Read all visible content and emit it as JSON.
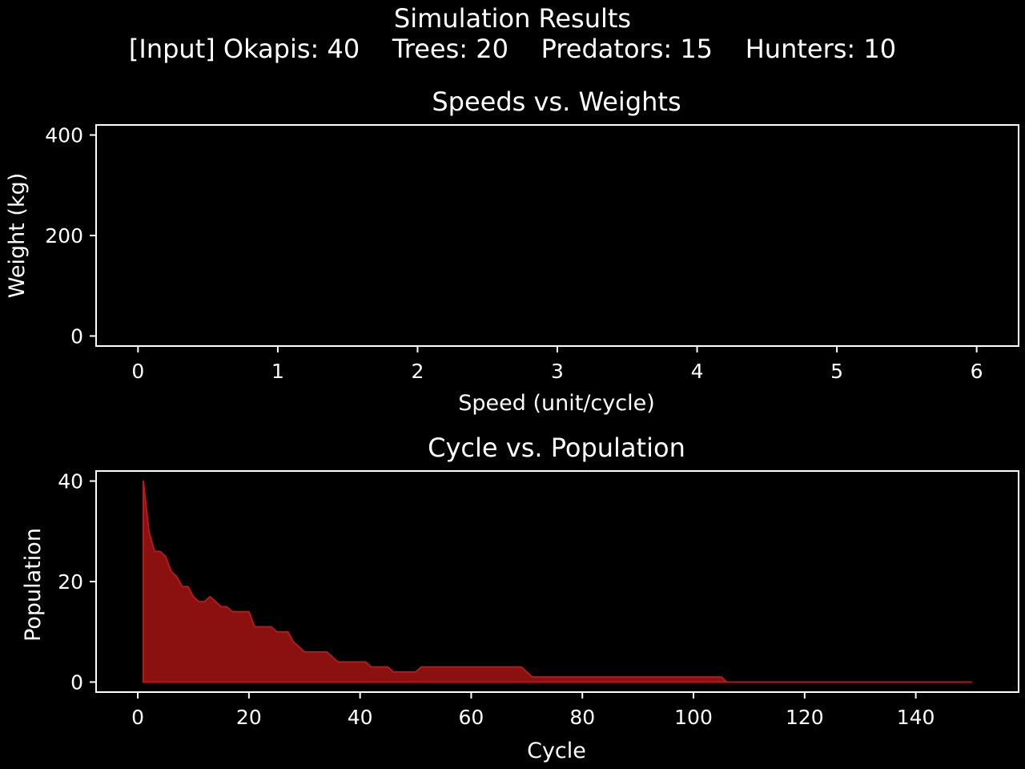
{
  "figure": {
    "title": "Simulation Results",
    "subtitle": "[Input] Okapis: 40    Trees: 20    Predators: 15    Hunters: 10"
  },
  "chart_data": [
    {
      "type": "scatter",
      "title": "Speeds vs. Weights",
      "xlabel": "Speed (unit/cycle)",
      "ylabel": "Weight (kg)",
      "xlim": [
        -0.3,
        6.3
      ],
      "ylim": [
        -20,
        420
      ],
      "xticks": [
        0,
        1,
        2,
        3,
        4,
        5,
        6
      ],
      "xtick_labels": [
        "0",
        "1",
        "2",
        "3",
        "4",
        "5",
        "6"
      ],
      "yticks": [
        0,
        200,
        400
      ],
      "ytick_labels": [
        "0",
        "200",
        "400"
      ],
      "points": [],
      "grid": false,
      "legend": "none"
    },
    {
      "type": "area",
      "title": "Cycle vs. Population",
      "xlabel": "Cycle",
      "ylabel": "Population",
      "xlim": [
        -7.5,
        158.5
      ],
      "ylim": [
        -2,
        42
      ],
      "xticks": [
        0,
        20,
        40,
        60,
        80,
        100,
        120,
        140
      ],
      "xtick_labels": [
        "0",
        "20",
        "40",
        "60",
        "80",
        "100",
        "120",
        "140"
      ],
      "yticks": [
        0,
        20,
        40
      ],
      "ytick_labels": [
        "0",
        "20",
        "40"
      ],
      "color": "#8b1111",
      "edge_color": "#b01c1c",
      "grid": false,
      "legend": "none",
      "series": [
        {
          "x": [
            1,
            2,
            3,
            4,
            5,
            6,
            7,
            8,
            9,
            10,
            11,
            12,
            13,
            14,
            15,
            16,
            17,
            18,
            19,
            20,
            21,
            22,
            23,
            24,
            25,
            26,
            27,
            28,
            29,
            30,
            31,
            32,
            33,
            34,
            35,
            36,
            37,
            38,
            39,
            40,
            41,
            42,
            43,
            44,
            45,
            46,
            47,
            48,
            49,
            50,
            51,
            52,
            53,
            54,
            55,
            56,
            57,
            58,
            59,
            60,
            61,
            62,
            63,
            64,
            65,
            66,
            67,
            68,
            69,
            70,
            71,
            72,
            73,
            74,
            75,
            76,
            77,
            78,
            79,
            80,
            81,
            82,
            83,
            84,
            85,
            86,
            87,
            88,
            89,
            90,
            91,
            92,
            93,
            94,
            95,
            96,
            97,
            98,
            99,
            100,
            101,
            102,
            103,
            104,
            105,
            106,
            107,
            108,
            109,
            110,
            111,
            112,
            113,
            114,
            115,
            116,
            117,
            118,
            119,
            120,
            121,
            122,
            123,
            124,
            125,
            126,
            127,
            128,
            129,
            130,
            131,
            132,
            133,
            134,
            135,
            136,
            137,
            138,
            139,
            140,
            141,
            142,
            143,
            144,
            145,
            146,
            147,
            148,
            149,
            150
          ],
          "y": [
            40,
            30,
            26,
            26,
            25,
            22,
            21,
            19,
            19,
            17,
            16,
            16,
            17,
            16,
            15,
            15,
            14,
            14,
            14,
            14,
            11,
            11,
            11,
            11,
            10,
            10,
            10,
            8,
            7,
            6,
            6,
            6,
            6,
            6,
            5,
            4,
            4,
            4,
            4,
            4,
            4,
            3,
            3,
            3,
            3,
            2,
            2,
            2,
            2,
            2,
            3,
            3,
            3,
            3,
            3,
            3,
            3,
            3,
            3,
            3,
            3,
            3,
            3,
            3,
            3,
            3,
            3,
            3,
            3,
            2,
            1,
            1,
            1,
            1,
            1,
            1,
            1,
            1,
            1,
            1,
            1,
            1,
            1,
            1,
            1,
            1,
            1,
            1,
            1,
            1,
            1,
            1,
            1,
            1,
            1,
            1,
            1,
            1,
            1,
            1,
            1,
            1,
            1,
            1,
            1,
            0,
            0,
            0,
            0,
            0,
            0,
            0,
            0,
            0,
            0,
            0,
            0,
            0,
            0,
            0,
            0,
            0,
            0,
            0,
            0,
            0,
            0,
            0,
            0,
            0,
            0,
            0,
            0,
            0,
            0,
            0,
            0,
            0,
            0,
            0,
            0,
            0,
            0,
            0,
            0,
            0,
            0,
            0,
            0,
            0
          ]
        }
      ]
    }
  ]
}
